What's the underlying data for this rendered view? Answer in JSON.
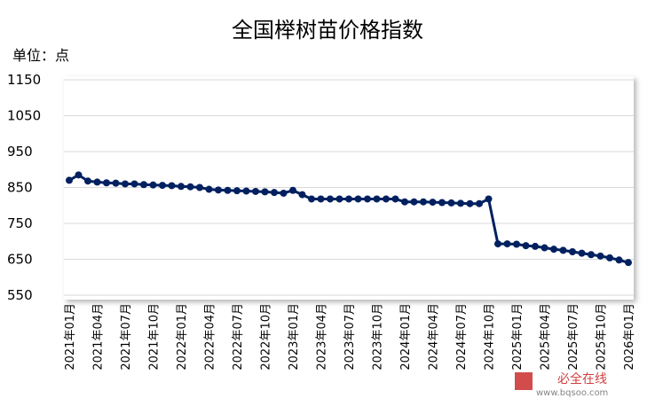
{
  "chart_data": {
    "type": "line",
    "title": "全国榉树苗价格指数",
    "y_axis_label": "单位：点",
    "annotations": [
      "必全在线",
      "www.bqsoo.com"
    ],
    "categories": [
      "2021年01月",
      null,
      null,
      "2021年04月",
      null,
      null,
      "2021年07月",
      null,
      null,
      "2021年10月",
      null,
      null,
      "2022年01月",
      null,
      null,
      "2022年04月",
      null,
      null,
      "2022年07月",
      null,
      null,
      "2022年10月",
      null,
      null,
      "2023年01月",
      null,
      null,
      "2023年04月",
      null,
      null,
      "2023年07月",
      null,
      null,
      "2023年10月",
      null,
      null,
      "2024年01月",
      null,
      null,
      "2024年04月",
      null,
      null,
      "2024年07月",
      null,
      null,
      "2024年10月",
      null,
      null,
      "2025年01月",
      null,
      null,
      "2025年04月",
      null,
      null,
      "2025年07月",
      null,
      null,
      "2025年10月",
      null,
      null,
      "2026年01月"
    ],
    "series": [
      {
        "name": "全国榉树苗价格指数",
        "color": "#002060",
        "values": [
          870,
          885,
          868,
          865,
          863,
          862,
          860,
          860,
          858,
          857,
          856,
          855,
          853,
          852,
          850,
          845,
          843,
          842,
          841,
          840,
          839,
          838,
          836,
          834,
          842,
          830,
          818,
          818,
          818,
          818,
          818,
          818,
          818,
          818,
          818,
          818,
          810,
          810,
          810,
          809,
          808,
          807,
          806,
          805,
          805,
          818,
          693,
          693,
          692,
          688,
          686,
          682,
          678,
          675,
          671,
          667,
          663,
          659,
          654,
          648,
          641
        ]
      }
    ],
    "ylim": [
      550,
      1150
    ],
    "yticks": [
      550,
      650,
      750,
      850,
      950,
      1050,
      1150
    ],
    "grid": true
  }
}
